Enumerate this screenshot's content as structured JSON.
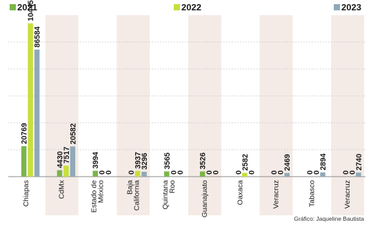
{
  "chart_data": {
    "type": "bar",
    "categories": [
      "Chiapas",
      "CdMx",
      "Estado de México",
      "Baja California",
      "Quintana Roo",
      "Guanajuato",
      "Oaxaca",
      "Veracruz",
      "Tabasco",
      "Veracruz"
    ],
    "category_lines": [
      [
        "Chiapas"
      ],
      [
        "CdMx"
      ],
      [
        "Estado de",
        "México"
      ],
      [
        "Baja",
        "California"
      ],
      [
        "Quintana",
        "Roo"
      ],
      [
        "Guanajuato"
      ],
      [
        "Oaxaca"
      ],
      [
        "Veracruz"
      ],
      [
        "Tabasco"
      ],
      [
        "Veracruz"
      ]
    ],
    "series": [
      {
        "name": "2021",
        "color": "#7bb54a",
        "values": [
          20769,
          4430,
          3994,
          0,
          3565,
          3526,
          0,
          0,
          0,
          0
        ]
      },
      {
        "name": "2022",
        "color": "#c8df3c",
        "values": [
          104456,
          7517,
          0,
          3937,
          0,
          0,
          2582,
          0,
          0,
          0
        ]
      },
      {
        "name": "2023",
        "color": "#8fa9b9",
        "values": [
          86584,
          20582,
          0,
          3296,
          0,
          0,
          0,
          2469,
          2894,
          2740
        ]
      }
    ],
    "ylim": [
      0,
      110000
    ],
    "legend_position": "top",
    "grid": true
  },
  "credit": "Gráfico: Jaqueline Bautista"
}
